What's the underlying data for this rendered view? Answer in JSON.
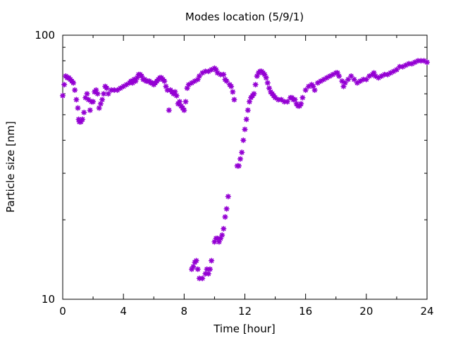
{
  "chart_data": {
    "type": "scatter",
    "title": "Modes location (5/9/1)",
    "xlabel": "Time [hour]",
    "ylabel": "Particle size [nm]",
    "xlim": [
      0,
      24
    ],
    "ylim": [
      10,
      100
    ],
    "yscale": "log",
    "x_ticks": [
      0,
      4,
      8,
      12,
      16,
      20,
      24
    ],
    "x_tick_labels": [
      "0",
      "4",
      "8",
      "12",
      "16",
      "20",
      "24"
    ],
    "y_major_ticks": [
      10,
      100
    ],
    "y_tick_labels": [
      "10",
      "100"
    ],
    "grid": false,
    "legend": "none",
    "marker": "asterisk",
    "color": "#9400d3",
    "series": [
      {
        "points": [
          [
            0.0,
            59
          ],
          [
            0.1,
            65
          ],
          [
            0.2,
            70
          ],
          [
            0.3,
            69
          ],
          [
            0.4,
            69
          ],
          [
            0.5,
            68
          ],
          [
            0.6,
            67
          ],
          [
            0.7,
            66
          ],
          [
            0.8,
            62
          ],
          [
            0.9,
            57
          ],
          [
            1.0,
            53
          ],
          [
            1.05,
            48
          ],
          [
            1.1,
            47
          ],
          [
            1.2,
            47
          ],
          [
            1.3,
            48
          ],
          [
            1.4,
            51
          ],
          [
            1.5,
            58
          ],
          [
            1.6,
            60
          ],
          [
            1.7,
            57
          ],
          [
            1.8,
            52
          ],
          [
            1.9,
            56
          ],
          [
            2.0,
            56
          ],
          [
            2.1,
            61
          ],
          [
            2.2,
            62
          ],
          [
            2.3,
            60
          ],
          [
            2.4,
            53
          ],
          [
            2.5,
            55
          ],
          [
            2.6,
            57
          ],
          [
            2.7,
            60
          ],
          [
            2.8,
            64
          ],
          [
            2.9,
            63
          ],
          [
            3.0,
            60
          ],
          [
            3.2,
            62
          ],
          [
            3.4,
            62
          ],
          [
            3.6,
            62
          ],
          [
            3.8,
            63
          ],
          [
            4.0,
            64
          ],
          [
            4.2,
            65
          ],
          [
            4.4,
            66
          ],
          [
            4.5,
            67
          ],
          [
            4.6,
            66
          ],
          [
            4.7,
            68
          ],
          [
            4.8,
            67
          ],
          [
            4.9,
            69
          ],
          [
            5.0,
            71
          ],
          [
            5.1,
            71
          ],
          [
            5.2,
            70
          ],
          [
            5.3,
            68
          ],
          [
            5.4,
            68
          ],
          [
            5.5,
            67
          ],
          [
            5.6,
            67
          ],
          [
            5.7,
            67
          ],
          [
            5.8,
            66
          ],
          [
            5.9,
            66
          ],
          [
            6.0,
            65
          ],
          [
            6.1,
            66
          ],
          [
            6.2,
            67
          ],
          [
            6.3,
            68
          ],
          [
            6.4,
            69
          ],
          [
            6.5,
            69
          ],
          [
            6.6,
            68
          ],
          [
            6.7,
            67
          ],
          [
            6.8,
            64
          ],
          [
            6.9,
            62
          ],
          [
            7.0,
            52
          ],
          [
            7.1,
            62
          ],
          [
            7.2,
            61
          ],
          [
            7.3,
            60
          ],
          [
            7.4,
            61
          ],
          [
            7.5,
            59
          ],
          [
            7.6,
            55
          ],
          [
            7.7,
            56
          ],
          [
            7.8,
            54
          ],
          [
            7.9,
            53
          ],
          [
            8.0,
            52
          ],
          [
            8.1,
            56
          ],
          [
            8.2,
            63
          ],
          [
            8.3,
            65
          ],
          [
            8.5,
            66
          ],
          [
            8.7,
            67
          ],
          [
            8.9,
            68
          ],
          [
            9.0,
            70
          ],
          [
            9.2,
            72
          ],
          [
            9.4,
            73
          ],
          [
            9.6,
            73
          ],
          [
            9.8,
            74
          ],
          [
            10.0,
            75
          ],
          [
            10.1,
            74
          ],
          [
            10.2,
            72
          ],
          [
            10.4,
            71
          ],
          [
            10.6,
            71
          ],
          [
            10.7,
            68
          ],
          [
            10.8,
            67
          ],
          [
            11.0,
            65
          ],
          [
            11.1,
            64
          ],
          [
            11.2,
            61
          ],
          [
            11.3,
            57
          ],
          [
            8.5,
            13
          ],
          [
            8.6,
            13.3
          ],
          [
            8.7,
            13.8
          ],
          [
            8.8,
            14
          ],
          [
            8.9,
            13
          ],
          [
            9.0,
            12
          ],
          [
            9.2,
            12
          ],
          [
            9.4,
            12.5
          ],
          [
            9.5,
            13
          ],
          [
            9.6,
            12.5
          ],
          [
            9.7,
            13
          ],
          [
            9.8,
            14
          ],
          [
            10.0,
            16.5
          ],
          [
            10.1,
            17
          ],
          [
            10.2,
            17
          ],
          [
            10.3,
            16.5
          ],
          [
            10.4,
            17
          ],
          [
            10.5,
            17.5
          ],
          [
            10.6,
            18.5
          ],
          [
            10.7,
            20.5
          ],
          [
            10.8,
            22
          ],
          [
            10.9,
            24.5
          ],
          [
            11.5,
            32
          ],
          [
            11.6,
            32
          ],
          [
            11.7,
            34
          ],
          [
            11.8,
            36
          ],
          [
            11.9,
            40
          ],
          [
            12.0,
            44
          ],
          [
            12.1,
            48
          ],
          [
            12.2,
            52
          ],
          [
            12.3,
            56
          ],
          [
            12.4,
            58
          ],
          [
            12.5,
            59
          ],
          [
            12.6,
            60
          ],
          [
            12.7,
            65
          ],
          [
            12.8,
            70
          ],
          [
            12.9,
            72
          ],
          [
            13.0,
            73
          ],
          [
            13.1,
            73
          ],
          [
            13.2,
            72
          ],
          [
            13.3,
            71
          ],
          [
            13.4,
            69
          ],
          [
            13.5,
            66
          ],
          [
            13.6,
            63
          ],
          [
            13.7,
            61
          ],
          [
            13.8,
            60
          ],
          [
            13.9,
            59
          ],
          [
            14.0,
            58
          ],
          [
            14.2,
            57
          ],
          [
            14.4,
            57
          ],
          [
            14.6,
            56
          ],
          [
            14.8,
            56
          ],
          [
            15.0,
            58
          ],
          [
            15.1,
            58
          ],
          [
            15.2,
            57
          ],
          [
            15.3,
            57
          ],
          [
            15.4,
            55
          ],
          [
            15.5,
            54
          ],
          [
            15.6,
            54
          ],
          [
            15.7,
            55
          ],
          [
            15.8,
            58
          ],
          [
            16.0,
            62
          ],
          [
            16.2,
            64
          ],
          [
            16.4,
            65
          ],
          [
            16.5,
            64
          ],
          [
            16.6,
            62
          ],
          [
            16.8,
            66
          ],
          [
            17.0,
            67
          ],
          [
            17.2,
            68
          ],
          [
            17.4,
            69
          ],
          [
            17.6,
            70
          ],
          [
            17.8,
            71
          ],
          [
            18.0,
            72
          ],
          [
            18.1,
            72
          ],
          [
            18.2,
            70
          ],
          [
            18.4,
            67
          ],
          [
            18.5,
            64
          ],
          [
            18.6,
            66
          ],
          [
            18.8,
            68
          ],
          [
            19.0,
            70
          ],
          [
            19.2,
            68
          ],
          [
            19.4,
            66
          ],
          [
            19.6,
            67
          ],
          [
            19.8,
            68
          ],
          [
            20.0,
            68
          ],
          [
            20.2,
            70
          ],
          [
            20.4,
            71
          ],
          [
            20.5,
            72
          ],
          [
            20.6,
            70
          ],
          [
            20.8,
            69
          ],
          [
            21.0,
            70
          ],
          [
            21.2,
            71
          ],
          [
            21.4,
            71
          ],
          [
            21.6,
            72
          ],
          [
            21.8,
            73
          ],
          [
            22.0,
            74
          ],
          [
            22.2,
            76
          ],
          [
            22.4,
            76
          ],
          [
            22.6,
            77
          ],
          [
            22.8,
            78
          ],
          [
            23.0,
            78
          ],
          [
            23.2,
            79
          ],
          [
            23.4,
            80
          ],
          [
            23.6,
            80
          ],
          [
            23.8,
            80
          ],
          [
            24.0,
            79
          ]
        ]
      }
    ]
  }
}
